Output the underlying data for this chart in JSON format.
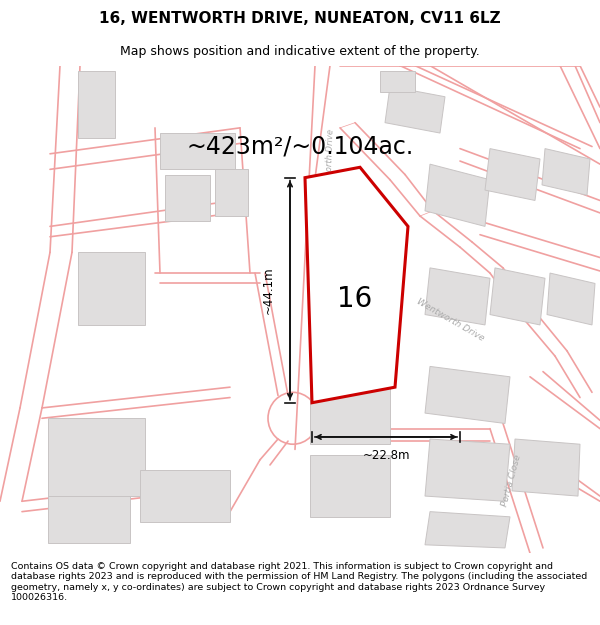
{
  "title": "16, WENTWORTH DRIVE, NUNEATON, CV11 6LZ",
  "subtitle": "Map shows position and indicative extent of the property.",
  "footer": "Contains OS data © Crown copyright and database right 2021. This information is subject to Crown copyright and database rights 2023 and is reproduced with the permission of HM Land Registry. The polygons (including the associated geometry, namely x, y co-ordinates) are subject to Crown copyright and database rights 2023 Ordnance Survey 100026316.",
  "area_label": "~423m²/~0.104ac.",
  "number_label": "16",
  "dim_width": "~22.8m",
  "dim_height": "~44.1m",
  "bg_color": "#ffffff",
  "map_bg": "#ffffff",
  "plot_color": "#cc0000",
  "plot_fill": "#ffffff",
  "road_line_color": "#f0a0a0",
  "building_fill": "#e0dede",
  "building_edge": "#c8c4c4",
  "dim_color": "#111111",
  "road_label_color": "#aaaaaa",
  "title_fontsize": 11,
  "subtitle_fontsize": 9,
  "footer_fontsize": 6.8,
  "figsize": [
    6.0,
    6.25
  ],
  "dpi": 100
}
